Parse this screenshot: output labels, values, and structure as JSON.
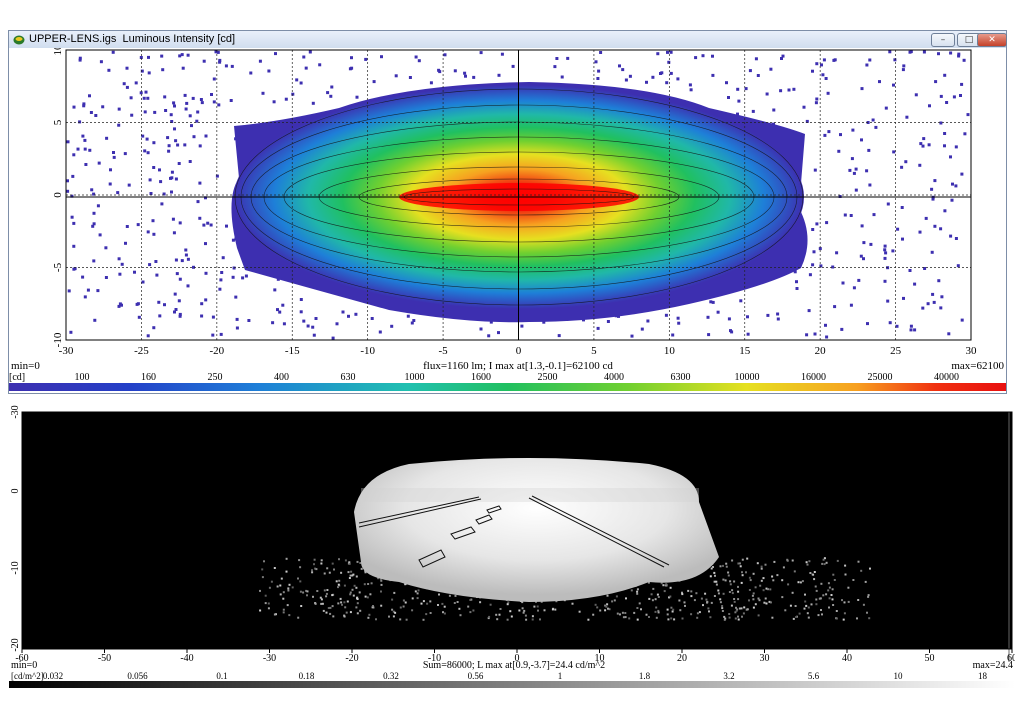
{
  "window": {
    "title_file": "UPPER-LENS.igs",
    "title_measure": "Luminous Intensity [cd]",
    "buttons": {
      "minimize": "–",
      "maximize": "□",
      "close": "✕"
    }
  },
  "top_plot": {
    "x_ticks": [
      "-30",
      "-25",
      "-20",
      "-15",
      "-10",
      "-5",
      "0",
      "5",
      "10",
      "15",
      "20",
      "25",
      "30"
    ],
    "y_ticks": [
      "10",
      "5",
      "0",
      "-5",
      "-10"
    ],
    "min_label": "min=0",
    "max_label": "max=62100",
    "summary": "flux=1160 lm; I max at[1.3,-0.1]=62100 cd",
    "unit_label": "[cd]",
    "scale_values": [
      "100",
      "160",
      "250",
      "400",
      "630",
      "1000",
      "1600",
      "2500",
      "4000",
      "6300",
      "10000",
      "16000",
      "25000",
      "40000"
    ],
    "colors": {
      "background": "#ffffff",
      "hot": "#e81010",
      "cold": "#3d2fb0"
    }
  },
  "bottom_plot": {
    "x_ticks": [
      "-60",
      "-50",
      "-40",
      "-30",
      "-20",
      "-10",
      "0",
      "10",
      "20",
      "30",
      "40",
      "50",
      "60"
    ],
    "y_ticks": [
      "0",
      "-10",
      "-20",
      "-30"
    ],
    "min_label": "min=0",
    "max_label": "max=24.4",
    "summary": "Sum=86000; L max at[0.9,-3.7]=24.4 cd/m^2",
    "unit_label": "[cd/m^2]",
    "scale_values": [
      "0.032",
      "0.056",
      "0.1",
      "0.18",
      "0.32",
      "0.56",
      "1",
      "1.8",
      "3.2",
      "5.6",
      "10",
      "18"
    ],
    "colors": {
      "background": "#000000"
    }
  }
}
